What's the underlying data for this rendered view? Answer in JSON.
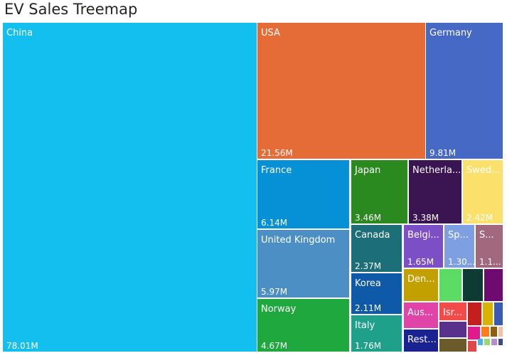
{
  "chart_data": {
    "type": "treemap",
    "title": "EV Sales Treemap",
    "unit": "M",
    "items": [
      {
        "name": "China",
        "value_label": "78.01M",
        "value": 78.01,
        "color": "#12bfef"
      },
      {
        "name": "USA",
        "value_label": "21.56M",
        "value": 21.56,
        "color": "#e66c37"
      },
      {
        "name": "Germany",
        "value_label": "9.81M",
        "value": 9.81,
        "color": "#4769c6"
      },
      {
        "name": "France",
        "value_label": "6.14M",
        "value": 6.14,
        "color": "#0691d6"
      },
      {
        "name": "United Kingdom",
        "value_label": "5.97M",
        "value": 5.97,
        "color": "#4c8fc4"
      },
      {
        "name": "Norway",
        "value_label": "4.67M",
        "value": 4.67,
        "color": "#1ea83e"
      },
      {
        "name": "Japan",
        "value_label": "3.46M",
        "value": 3.46,
        "color": "#2b8a1f"
      },
      {
        "name": "Netherla...",
        "value_label": "3.38M",
        "value": 3.38,
        "color": "#3b1452"
      },
      {
        "name": "Swed...",
        "value_label": "2.42M",
        "value": 2.42,
        "color": "#fce06c"
      },
      {
        "name": "Canada",
        "value_label": "2.37M",
        "value": 2.37,
        "color": "#1c6f78"
      },
      {
        "name": "Korea",
        "value_label": "2.11M",
        "value": 2.11,
        "color": "#0f5aa8"
      },
      {
        "name": "Italy",
        "value_label": "1.76M",
        "value": 1.76,
        "color": "#1ea08a"
      },
      {
        "name": "Belgi...",
        "value_label": "1.65M",
        "value": 1.65,
        "color": "#7d4fc6"
      },
      {
        "name": "Sp...",
        "value_label": "1.30...",
        "value": 1.3,
        "color": "#7f9fe3"
      },
      {
        "name": "S...",
        "value_label": "1.1...",
        "value": 1.1,
        "color": "#a2687d"
      },
      {
        "name": "Den...",
        "value": null,
        "color": "#c2a000"
      },
      {
        "name": "",
        "value": null,
        "color": "#5cdc64"
      },
      {
        "name": "",
        "value": null,
        "color": "#0e3b34"
      },
      {
        "name": "",
        "value": null,
        "color": "#6e0a70"
      },
      {
        "name": "Aus...",
        "value": null,
        "color": "#e044a7"
      },
      {
        "name": "Isr...",
        "value": null,
        "color": "#f44a4a"
      },
      {
        "name": "",
        "value": null,
        "color": "#c41e1e"
      },
      {
        "name": "",
        "value": null,
        "color": "#d9b300"
      },
      {
        "name": "",
        "value": null,
        "color": "#3a5ab8"
      },
      {
        "name": "Rest...",
        "value": null,
        "color": "#1a2190"
      },
      {
        "name": "",
        "value": null,
        "color": "#59308c"
      },
      {
        "name": "",
        "value": null,
        "color": "#e01a8c"
      },
      {
        "name": "",
        "value": null,
        "color": "#ff7d16"
      },
      {
        "name": "",
        "value": null,
        "color": "#8f5e0c"
      },
      {
        "name": "",
        "value": null,
        "color": "#f5bfa8"
      },
      {
        "name": "",
        "value": null,
        "color": "#6b5a2a"
      },
      {
        "name": "",
        "value": null,
        "color": "#e04848"
      },
      {
        "name": "",
        "value": null,
        "color": "#4bb2e6"
      },
      {
        "name": "",
        "value": null,
        "color": "#9cd96a"
      },
      {
        "name": "",
        "value": null,
        "color": "#b88ad6"
      },
      {
        "name": "",
        "value": null,
        "color": "#3c4a8c"
      }
    ]
  }
}
